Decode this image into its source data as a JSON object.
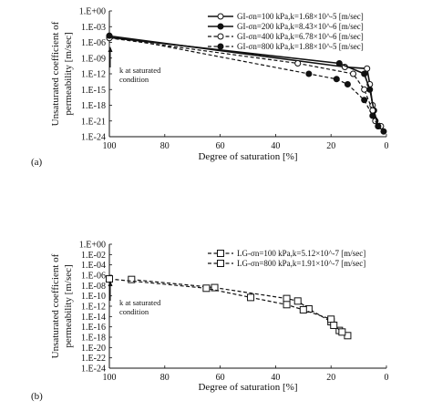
{
  "panels": [
    {
      "label": "(a)",
      "xlabel": "Degree of saturation [%]",
      "ylabel_lines": [
        "Unsaturated coefficient of",
        "permeability [m/sec]"
      ],
      "annotation": [
        "k at saturated",
        "condition"
      ]
    },
    {
      "label": "(b)",
      "xlabel": "Degree of saturation [%]",
      "ylabel_lines": [
        "Unsaturated coefficient of",
        "permeability [m/sec]"
      ],
      "annotation": [
        "k at saturated",
        "condition"
      ]
    }
  ],
  "chart_data": [
    {
      "type": "line",
      "xlabel": "Degree of saturation [%]",
      "ylabel": "Unsaturated coefficient of permeability [m/sec]",
      "xlim": [
        100,
        0
      ],
      "x_reversed": true,
      "y_scale": "log",
      "ylim": [
        1e-24,
        1
      ],
      "x_ticks": [
        "100",
        "80",
        "60",
        "40",
        "20",
        "0"
      ],
      "y_ticks": [
        "1.E+00",
        "1.E-03",
        "1.E-06",
        "1.E-09",
        "1.E-12",
        "1.E-15",
        "1.E-18",
        "1.E-21",
        "1.E-24"
      ],
      "grid": false,
      "legend_position": "top-right",
      "series": [
        {
          "name": "GI-σn=100 kPa,k=1.68×10^-5 [m/sec]",
          "marker": "open-circle",
          "line": "solid",
          "color": "#111111",
          "x": [
            100,
            15,
            7,
            6,
            5,
            4
          ],
          "y": [
            1.68e-05,
            2e-11,
            1e-11,
            1e-14,
            1e-18,
            1e-21
          ]
        },
        {
          "name": "GI-σn=200 kPa,k=8.43×10^-6 [m/sec]",
          "marker": "filled-circle",
          "line": "solid",
          "color": "#111111",
          "x": [
            100,
            17,
            8,
            6,
            4.5,
            3
          ],
          "y": [
            8.43e-06,
            1e-10,
            1e-12,
            1e-15,
            1e-19,
            1e-22
          ]
        },
        {
          "name": "GI-σn=400 kPa,k=6.78×10^-6 [m/sec]",
          "marker": "open-circle",
          "line": "dashed",
          "color": "#111111",
          "x": [
            100,
            32,
            12,
            8,
            5,
            2
          ],
          "y": [
            6.78e-06,
            1e-10,
            1e-12,
            1e-15,
            1e-19,
            1e-22
          ]
        },
        {
          "name": "GI-σn=800 kPa,k=1.88×10^-5 [m/sec]",
          "marker": "filled-circle",
          "line": "dashed",
          "color": "#111111",
          "x": [
            100,
            28,
            18,
            14,
            8,
            5,
            3,
            1
          ],
          "y": [
            1.88e-05,
            1e-12,
            1e-13,
            1e-14,
            1e-17,
            1e-20,
            1e-22,
            1e-23
          ]
        }
      ]
    },
    {
      "type": "line",
      "xlabel": "Degree of saturation [%]",
      "ylabel": "Unsaturated coefficient of permeability [m/sec]",
      "xlim": [
        100,
        0
      ],
      "x_reversed": true,
      "y_scale": "log",
      "ylim": [
        1e-24,
        1
      ],
      "x_ticks": [
        "100",
        "80",
        "60",
        "40",
        "20",
        "0"
      ],
      "y_ticks": [
        "1.E+00",
        "1.E-02",
        "1.E-04",
        "1.E-06",
        "1.E-08",
        "1.E-10",
        "1.E-12",
        "1.E-14",
        "1.E-16",
        "1.E-18",
        "1.E-20",
        "1.E-22",
        "1.E-24"
      ],
      "grid": false,
      "legend_position": "top-right",
      "series": [
        {
          "name": "LG-σn=100 kPa,k=5.12×10^-7 [m/sec]",
          "marker": "open-square",
          "line": "dashed",
          "color": "#111111",
          "x": [
            92,
            62,
            36,
            32,
            28,
            20,
            17,
            14
          ],
          "y": [
            1.5e-07,
            4e-09,
            3e-11,
            1e-11,
            3e-13,
            1e-15,
            2e-17,
            2e-18
          ]
        },
        {
          "name": "LG-σn=800 kPa,k=1.91×10^-7 [m/sec]",
          "marker": "open-square",
          "line": "dashed",
          "color": "#111111",
          "x": [
            100,
            65,
            49,
            36,
            30,
            20,
            19,
            16
          ],
          "y": [
            1.91e-07,
            3e-09,
            5e-11,
            2e-12,
            2e-13,
            3e-15,
            2e-16,
            1e-17
          ]
        }
      ]
    }
  ]
}
